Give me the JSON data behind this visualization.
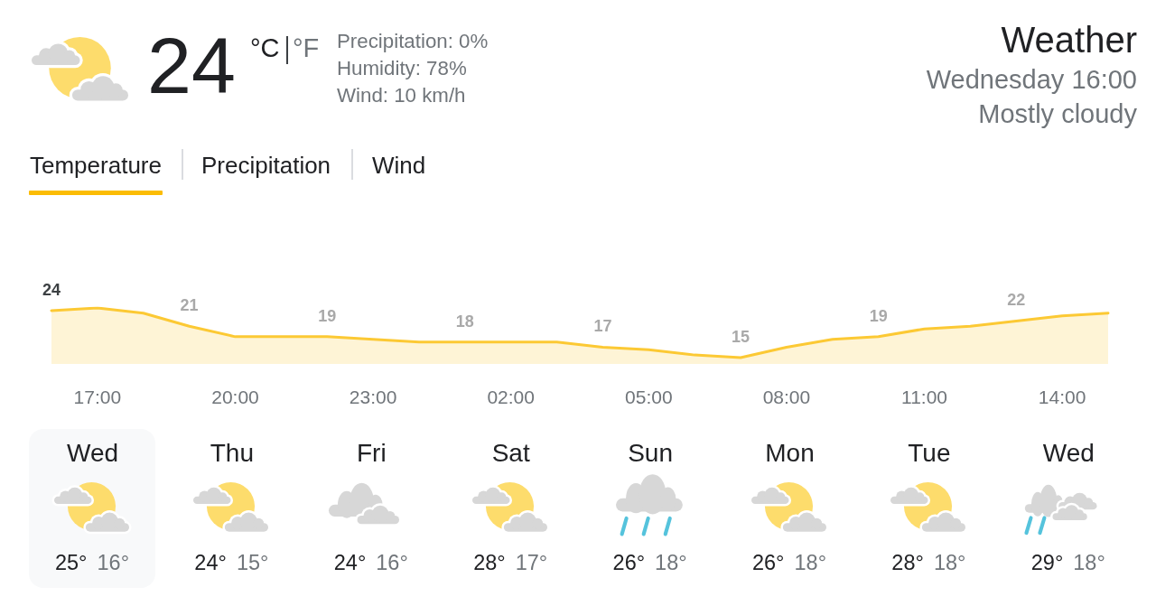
{
  "chart_data": [
    {
      "type": "other",
      "title": "Weather",
      "subtitle": "Wednesday 16:00",
      "annotations": [
        "24",
        "°C",
        "°F",
        "Precipitation: 0%",
        "Humidity: 78%",
        "Wind: 10 km/h",
        "Mostly cloudy",
        "Temperature",
        "Precipitation",
        "Wind"
      ]
    },
    {
      "type": "area",
      "categories": [
        null,
        "17:00",
        null,
        null,
        "20:00",
        null,
        null,
        "23:00",
        null,
        null,
        "02:00",
        null,
        null,
        "05:00",
        null,
        null,
        "08:00",
        null,
        null,
        "11:00",
        null,
        null,
        "14:00",
        null
      ],
      "values": [
        24,
        24.5,
        23.5,
        21,
        19,
        19,
        19,
        18.5,
        18,
        18,
        18,
        18,
        17,
        16.5,
        15.5,
        15,
        17,
        18.5,
        19,
        20.5,
        21,
        22,
        23,
        23.5
      ],
      "value_labels": [
        "24",
        null,
        null,
        "21",
        null,
        null,
        "19",
        null,
        null,
        "18",
        null,
        null,
        "17",
        null,
        null,
        "15",
        null,
        null,
        "19",
        null,
        null,
        "22",
        null,
        null
      ],
      "color": "#fcc934",
      "tick_labels": "x",
      "marker": "none"
    },
    {
      "type": "other",
      "categories": [
        "Wed",
        "Thu",
        "Fri",
        "Sat",
        "Sun",
        "Mon",
        "Tue",
        "Wed"
      ],
      "annotations": [
        "25°",
        "16°",
        "24°",
        "15°",
        "24°",
        "16°",
        "28°",
        "17°",
        "26°",
        "18°",
        "26°",
        "18°",
        "28°",
        "18°",
        "29°",
        "18°"
      ]
    }
  ]
}
